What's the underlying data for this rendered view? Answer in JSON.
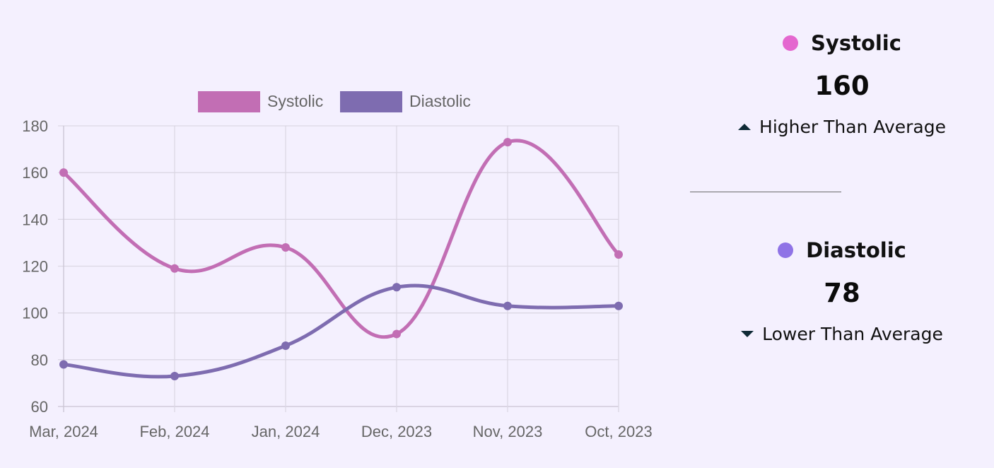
{
  "chart_data": {
    "type": "line",
    "categories": [
      "Mar, 2024",
      "Feb, 2024",
      "Jan, 2024",
      "Dec, 2023",
      "Nov, 2023",
      "Oct, 2023"
    ],
    "series": [
      {
        "name": "Systolic",
        "values": [
          160,
          119,
          128,
          91,
          173,
          125
        ],
        "color": "#c26eb4"
      },
      {
        "name": "Diastolic",
        "values": [
          78,
          73,
          86,
          111,
          103,
          103
        ],
        "color": "#7e6cb0"
      }
    ],
    "ylim": [
      60,
      180
    ],
    "yticks": [
      60,
      80,
      100,
      120,
      140,
      160,
      180
    ],
    "grid": true,
    "legend_position": "top-center",
    "title": "",
    "xlabel": "",
    "ylabel": ""
  },
  "summary": {
    "systolic": {
      "label": "Systolic",
      "value": "160",
      "trend": "Higher Than Average",
      "trend_direction": "up",
      "dot_color": "#e467cf"
    },
    "diastolic": {
      "label": "Diastolic",
      "value": "78",
      "trend": "Lower Than Average",
      "trend_direction": "down",
      "dot_color": "#8f73e6"
    }
  }
}
